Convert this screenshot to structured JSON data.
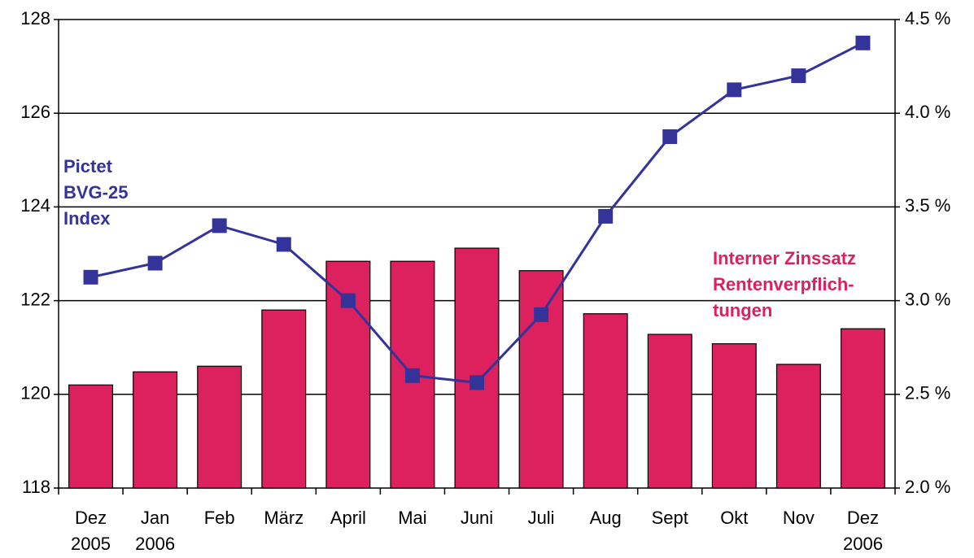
{
  "chart_data": {
    "type": "bar_line",
    "categories": [
      [
        "Dez",
        "2005"
      ],
      [
        "Jan",
        "2006"
      ],
      [
        "Feb"
      ],
      [
        "März"
      ],
      [
        "April"
      ],
      [
        "Mai"
      ],
      [
        "Juni"
      ],
      [
        "Juli"
      ],
      [
        "Aug"
      ],
      [
        "Sept"
      ],
      [
        "Okt"
      ],
      [
        "Nov"
      ],
      [
        "Dez",
        "2006"
      ]
    ],
    "series": [
      {
        "type": "bar",
        "axis": "y2",
        "color": "#dc215e",
        "values": [
          2.55,
          2.62,
          2.65,
          2.95,
          3.21,
          3.21,
          3.28,
          3.16,
          2.93,
          2.82,
          2.77,
          2.66,
          2.85
        ]
      },
      {
        "type": "line",
        "axis": "y",
        "color": "#33339a",
        "values": [
          122.5,
          122.8,
          123.6,
          123.2,
          122.0,
          120.4,
          120.25,
          121.7,
          123.8,
          125.5,
          126.5,
          126.8,
          127.5
        ]
      }
    ],
    "annotations": [
      {
        "lines": [
          "Pictet",
          "BVG-25",
          "Index"
        ],
        "color": "#33339a"
      },
      {
        "lines": [
          "Interner Zinssatz",
          "Rentenverpflich-",
          "tungen"
        ],
        "color": "#dc215e"
      }
    ],
    "ylim": [
      118,
      128
    ],
    "yticks": [
      118,
      120,
      122,
      124,
      126,
      128
    ],
    "y2lim": [
      2.0,
      4.5
    ],
    "y2ticks": [
      {
        "value": 2.0,
        "label": "2.0 %"
      },
      {
        "value": 2.5,
        "label": "2.5 %"
      },
      {
        "value": 3.0,
        "label": "3.0 %"
      },
      {
        "value": 3.5,
        "label": "3.5 %"
      },
      {
        "value": 4.0,
        "label": "4.0 %"
      },
      {
        "value": 4.5,
        "label": "4.5 %"
      }
    ],
    "grid": true
  }
}
